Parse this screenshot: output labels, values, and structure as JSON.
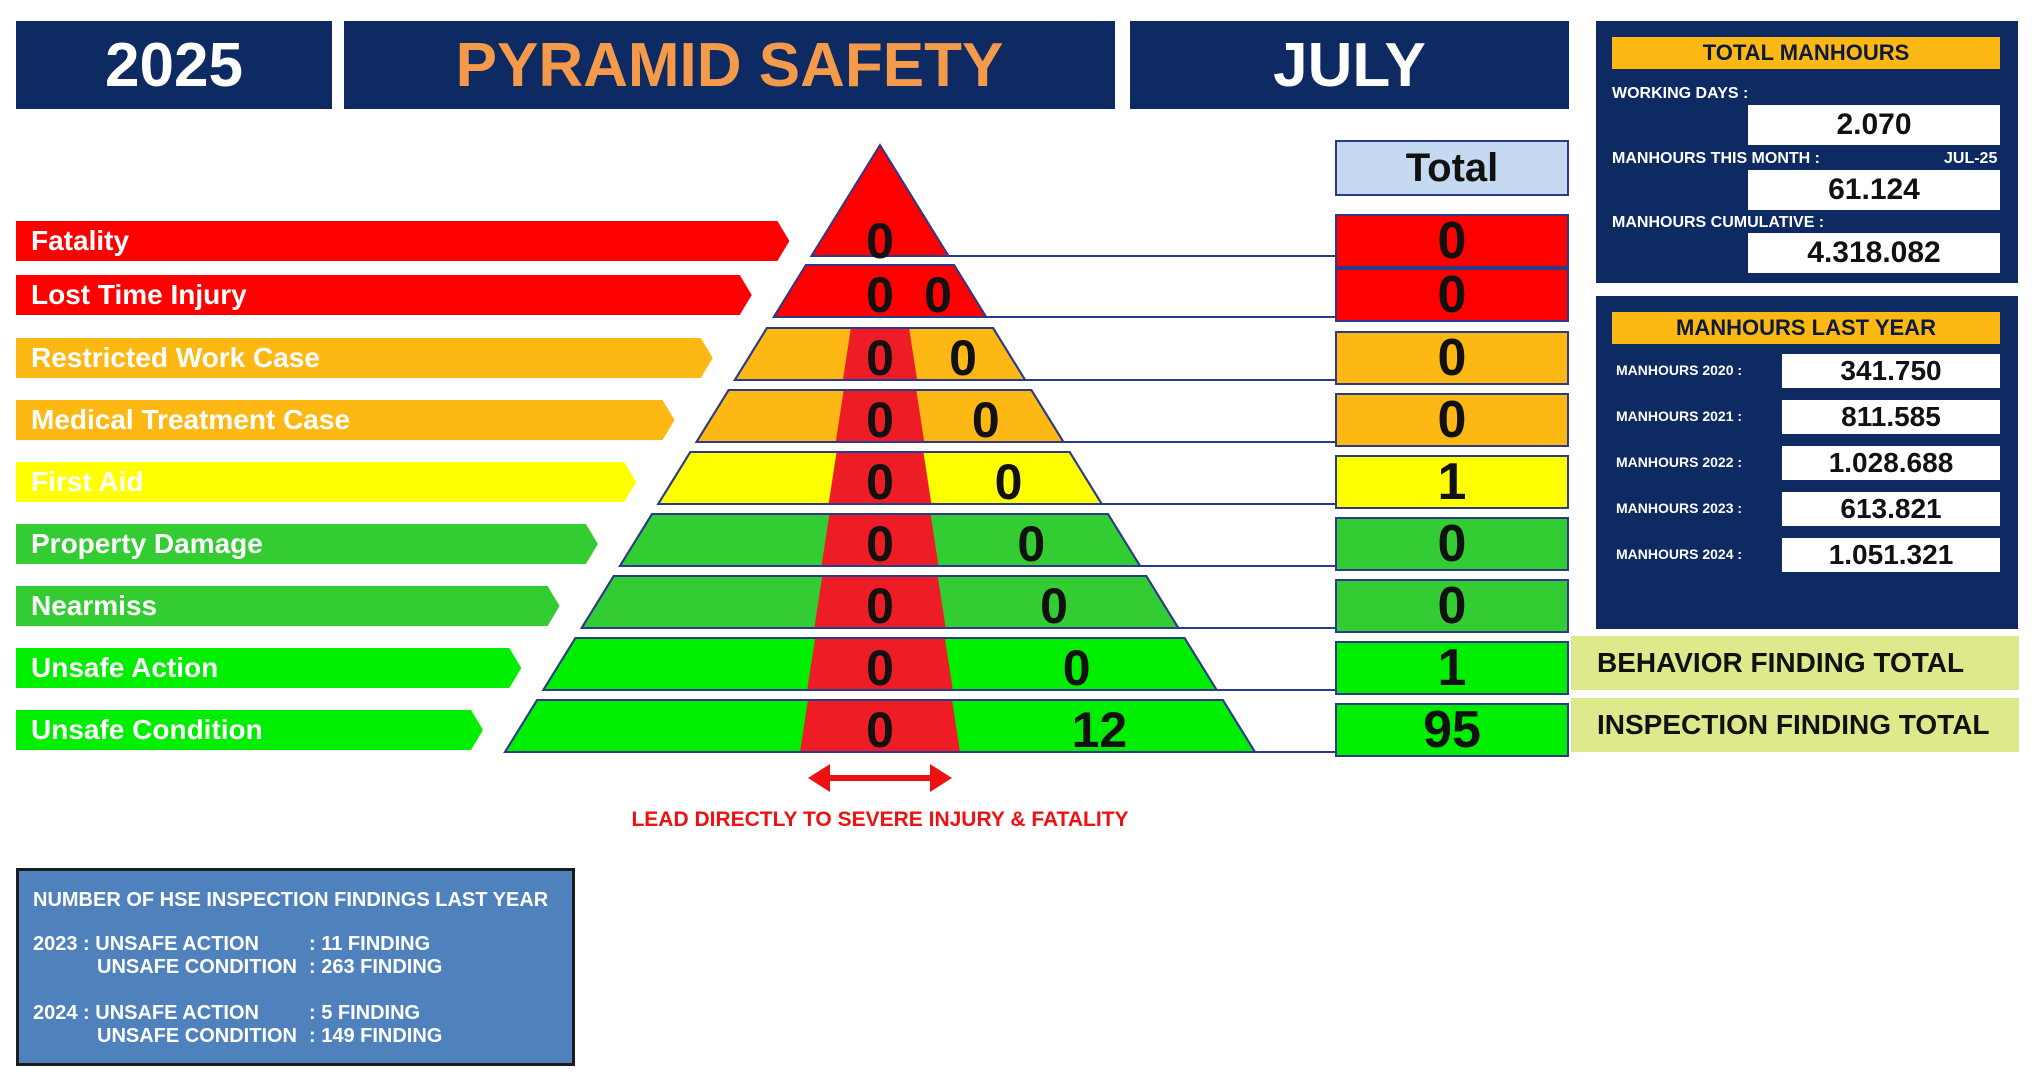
{
  "header": {
    "year": "2025",
    "title": "PYRAMID SAFETY",
    "month": "JULY"
  },
  "total_label": "Total",
  "categories": [
    {
      "label": "Fatality",
      "color": "#ff0000",
      "center": "0",
      "right": "",
      "total": "0"
    },
    {
      "label": "Lost Time Injury",
      "color": "#ff0000",
      "center": "0",
      "right": "0",
      "total": "0"
    },
    {
      "label": "Restricted Work Case",
      "color": "#fdb813",
      "center": "0",
      "right": "0",
      "total": "0"
    },
    {
      "label": "Medical Treatment Case",
      "color": "#fdb813",
      "center": "0",
      "right": "0",
      "total": "0"
    },
    {
      "label": "First Aid",
      "color": "#ffff00",
      "center": "0",
      "right": "0",
      "total": "1"
    },
    {
      "label": "Property Damage",
      "color": "#33cc33",
      "center": "0",
      "right": "0",
      "total": "0"
    },
    {
      "label": "Nearmiss",
      "color": "#33cc33",
      "center": "0",
      "right": "0",
      "total": "0"
    },
    {
      "label": "Unsafe Action",
      "color": "#00ee00",
      "center": "0",
      "right": "0",
      "total": "1"
    },
    {
      "label": "Unsafe Condition",
      "color": "#00ee00",
      "center": "0",
      "right": "12",
      "total": "95"
    }
  ],
  "severe_note": "LEAD DIRECTLY TO SEVERE INJURY & FATALITY",
  "finding_totals": {
    "behavior": "BEHAVIOR FINDING TOTAL",
    "inspection": "INSPECTION FINDING TOTAL"
  },
  "total_manhours": {
    "title": "TOTAL MANHOURS",
    "working_days_label": "WORKING DAYS :",
    "working_days": "2.070",
    "this_month_label": "MANHOURS THIS MONTH :",
    "this_month_period": "JUL-25",
    "this_month": "61.124",
    "cumulative_label": "MANHOURS CUMULATIVE :",
    "cumulative": "4.318.082"
  },
  "last_year": {
    "title": "MANHOURS LAST YEAR",
    "rows": [
      {
        "label": "MANHOURS 2020 :",
        "value": "341.750"
      },
      {
        "label": "MANHOURS 2021 :",
        "value": "811.585"
      },
      {
        "label": "MANHOURS 2022 :",
        "value": "1.028.688"
      },
      {
        "label": "MANHOURS 2023 :",
        "value": "613.821"
      },
      {
        "label": "MANHOURS 2024 :",
        "value": "1.051.321"
      }
    ]
  },
  "hse_findings": {
    "title": "NUMBER OF HSE INSPECTION FINDINGS LAST YEAR",
    "y2023_a": "2023 : UNSAFE ACTION",
    "y2023_a_val": ": 11 FINDING",
    "y2023_c": "UNSAFE CONDITION",
    "y2023_c_val": ": 263 FINDING",
    "y2024_a": "2024 : UNSAFE ACTION",
    "y2024_a_val": ": 5 FINDING",
    "y2024_c": "UNSAFE CONDITION",
    "y2024_c_val": ": 149 FINDING"
  }
}
